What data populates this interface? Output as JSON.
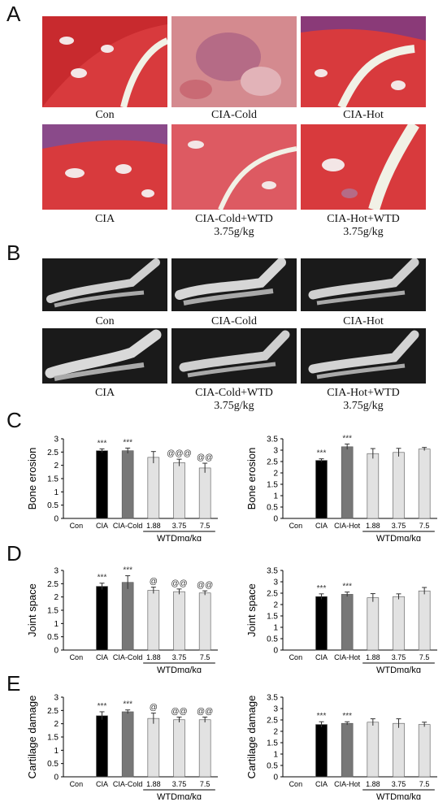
{
  "panels": {
    "A": "A",
    "B": "B",
    "C": "C",
    "D": "D",
    "E": "E"
  },
  "panel_a": {
    "captions": [
      "Con",
      "CIA-Cold",
      "CIA-Hot",
      "CIA",
      "CIA-Cold+WTD\n3.75g/kg",
      "CIA-Hot+WTD\n3.75g/kg"
    ]
  },
  "panel_b": {
    "captions": [
      "Con",
      "CIA-Cold",
      "CIA-Hot",
      "CIA",
      "CIA-Cold+WTD\n3.75g/kg",
      "CIA-Hot+WTD\n3.75g/kg"
    ]
  },
  "colors": {
    "cia": "#000000",
    "cold_hot": "#777777",
    "wtd": "#e2e2e2",
    "histo": "#d83a3d",
    "xray": "#1a1a1a"
  },
  "chart_data": [
    {
      "id": "C-left",
      "type": "bar",
      "ylabel": "Bone erosion",
      "xlabel": "WTDmg/kg",
      "categories": [
        "Con",
        "CIA",
        "CIA-Cold",
        "1.88",
        "3.75",
        "7.5"
      ],
      "values": [
        0,
        2.55,
        2.55,
        2.3,
        2.1,
        1.9
      ],
      "errors": [
        0,
        0.07,
        0.1,
        0.22,
        0.13,
        0.18
      ],
      "annotations": [
        "",
        "***",
        "***",
        "",
        "@@@",
        "@@"
      ],
      "yticks": [
        "0",
        "0.5",
        "1",
        "1.5",
        "2",
        "2.5",
        "3"
      ],
      "ylim": [
        0,
        3
      ]
    },
    {
      "id": "C-right",
      "type": "bar",
      "ylabel": "Bone erosion",
      "xlabel": "WTDmg/kg",
      "categories": [
        "Con",
        "CIA",
        "CIA-Hot",
        "1.88",
        "3.75",
        "7.5"
      ],
      "values": [
        0,
        2.55,
        3.15,
        2.85,
        2.9,
        3.05
      ],
      "errors": [
        0,
        0.07,
        0.12,
        0.22,
        0.18,
        0.07
      ],
      "annotations": [
        "",
        "***",
        "***",
        "",
        "",
        ""
      ],
      "yticks": [
        "0",
        "0.5",
        "1",
        "1.5",
        "2",
        "2.5",
        "3",
        "3.5"
      ],
      "ylim": [
        0,
        3.5
      ]
    },
    {
      "id": "D-left",
      "type": "bar",
      "ylabel": "Joint space",
      "xlabel": "WTDmg/kg",
      "categories": [
        "Con",
        "CIA",
        "CIA-Cold",
        "1.88",
        "3.75",
        "7.5"
      ],
      "values": [
        0,
        2.4,
        2.55,
        2.25,
        2.2,
        2.15
      ],
      "errors": [
        0,
        0.12,
        0.25,
        0.12,
        0.1,
        0.08
      ],
      "annotations": [
        "",
        "***",
        "***",
        "@",
        "@@",
        "@@"
      ],
      "yticks": [
        "0",
        "0.5",
        "1",
        "1.5",
        "2",
        "2.5",
        "3"
      ],
      "ylim": [
        0,
        3
      ]
    },
    {
      "id": "D-right",
      "type": "bar",
      "ylabel": "Joint space",
      "xlabel": "WTDmg/kg",
      "categories": [
        "Con",
        "CIA",
        "CIA-Hot",
        "1.88",
        "3.75",
        "7.5"
      ],
      "values": [
        0,
        2.35,
        2.45,
        2.3,
        2.35,
        2.6
      ],
      "errors": [
        0,
        0.12,
        0.1,
        0.18,
        0.12,
        0.15
      ],
      "annotations": [
        "",
        "***",
        "***",
        "",
        "",
        ""
      ],
      "yticks": [
        "0",
        "0.5",
        "1",
        "1.5",
        "2",
        "2.5",
        "3",
        "3.5"
      ],
      "ylim": [
        0,
        3.5
      ]
    },
    {
      "id": "E-left",
      "type": "bar",
      "ylabel": "Cartilage damage",
      "xlabel": "WTDmg/kg",
      "categories": [
        "Con",
        "CIA",
        "CIA-Cold",
        "1.88",
        "3.75",
        "7.5"
      ],
      "values": [
        0,
        2.3,
        2.45,
        2.2,
        2.15,
        2.15
      ],
      "errors": [
        0,
        0.15,
        0.07,
        0.2,
        0.1,
        0.1
      ],
      "annotations": [
        "",
        "***",
        "***",
        "@",
        "@@",
        "@@"
      ],
      "yticks": [
        "0",
        "0.5",
        "1",
        "1.5",
        "2",
        "2.5",
        "3"
      ],
      "ylim": [
        0,
        3
      ]
    },
    {
      "id": "E-right",
      "type": "bar",
      "ylabel": "Cartilage damage",
      "xlabel": "WTDmg/kg",
      "categories": [
        "Con",
        "CIA",
        "CIA-Hot",
        "1.88",
        "3.75",
        "7.5"
      ],
      "values": [
        0,
        2.3,
        2.35,
        2.4,
        2.35,
        2.3
      ],
      "errors": [
        0,
        0.12,
        0.07,
        0.15,
        0.2,
        0.1
      ],
      "annotations": [
        "",
        "***",
        "***",
        "",
        "",
        ""
      ],
      "yticks": [
        "0",
        "0.5",
        "1",
        "1.5",
        "2",
        "2.5",
        "3",
        "3.5"
      ],
      "ylim": [
        0,
        3.5
      ]
    }
  ]
}
